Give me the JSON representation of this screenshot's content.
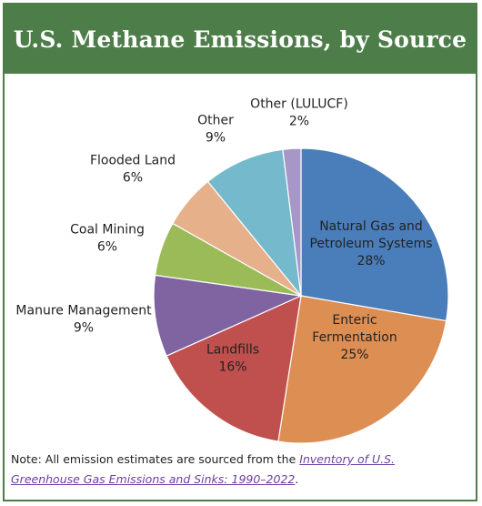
{
  "header": {
    "title": "U.S. Methane Emissions, by Source"
  },
  "chart_data": {
    "type": "pie",
    "title": "U.S. Methane Emissions, by Source",
    "slices": [
      {
        "label": [
          "Natural Gas and",
          "Petroleum Systems"
        ],
        "value": 28,
        "display": "28%",
        "color": "#4a7ebb"
      },
      {
        "label": [
          "Enteric",
          "Fermentation"
        ],
        "value": 25,
        "display": "25%",
        "color": "#dd8e53"
      },
      {
        "label": [
          "Landfills"
        ],
        "value": 16,
        "display": "16%",
        "color": "#c0504d"
      },
      {
        "label": [
          "Manure Management"
        ],
        "value": 9,
        "display": "9%",
        "color": "#8064a2"
      },
      {
        "label": [
          "Coal Mining"
        ],
        "value": 6,
        "display": "6%",
        "color": "#9bbb59"
      },
      {
        "label": [
          "Flooded Land"
        ],
        "value": 6,
        "display": "6%",
        "color": "#e6b08a"
      },
      {
        "label": [
          "Other"
        ],
        "value": 9,
        "display": "9%",
        "color": "#74b9cc"
      },
      {
        "label": [
          "Other (LULUCF)"
        ],
        "value": 2,
        "display": "2%",
        "color": "#a797c6"
      }
    ],
    "start_angle_deg": 0,
    "direction": "clockwise"
  },
  "note": {
    "prefix": "Note: All emission estimates are sourced from the ",
    "link_text": "Inventory of U.S. Greenhouse Gas Emissions and Sinks: 1990–2022",
    "suffix": "."
  }
}
